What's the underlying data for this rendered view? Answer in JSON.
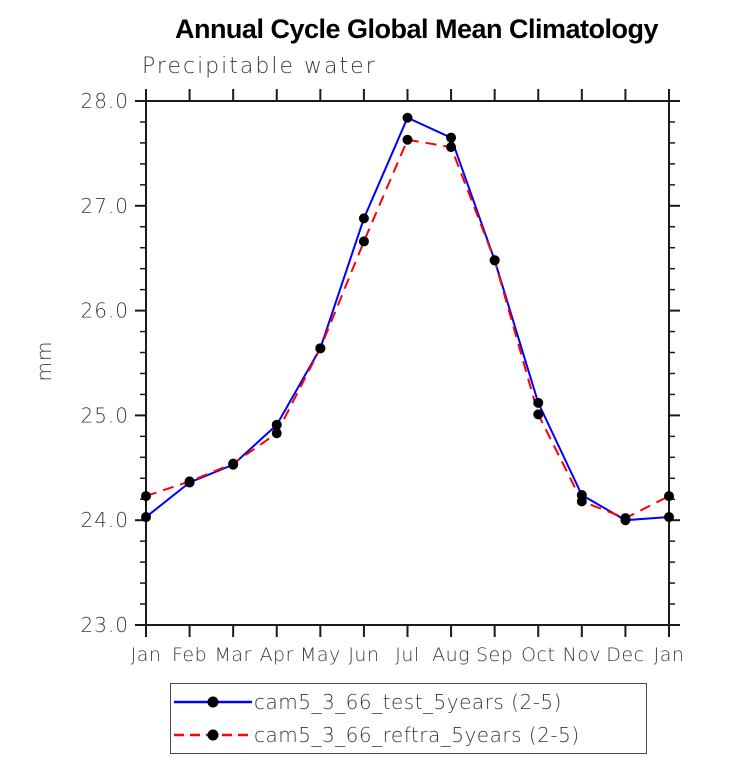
{
  "colors": {
    "background": "#ffffff",
    "axis": "#1a1a1a",
    "tick_label": "#3a3a3a",
    "marker": "#000000",
    "series_test": "#0000ff",
    "series_reftra": "#ff0000"
  },
  "chart_data": {
    "type": "line",
    "title": "Annual Cycle Global Mean Climatology",
    "subtitle": "Precipitable water",
    "ylabel": "mm",
    "categories": [
      "Jan",
      "Feb",
      "Mar",
      "Apr",
      "May",
      "Jun",
      "Jul",
      "Aug",
      "Sep",
      "Oct",
      "Nov",
      "Dec",
      "Jan"
    ],
    "y_axis": {
      "min": 23.0,
      "max": 28.0,
      "major_step": 1.0,
      "minor_step": 0.2,
      "tick_labels": [
        "23.0",
        "24.0",
        "25.0",
        "26.0",
        "27.0",
        "28.0"
      ]
    },
    "grid": "off",
    "legend_position": "bottom-boxed",
    "series": [
      {
        "name": "cam5_3_66_test_5years (2-5)",
        "color": "#0000ff",
        "style": "solid",
        "marker": "filled-circle",
        "values": [
          24.03,
          24.36,
          24.53,
          24.91,
          25.64,
          26.88,
          27.84,
          27.65,
          26.48,
          25.12,
          24.24,
          24.0,
          24.03
        ]
      },
      {
        "name": "cam5_3_66_reftra_5years (2-5)",
        "color": "#ff0000",
        "style": "dashed",
        "marker": "filled-circle",
        "values": [
          24.23,
          24.37,
          24.54,
          24.83,
          25.64,
          26.66,
          27.63,
          27.56,
          26.48,
          25.01,
          24.18,
          24.02,
          24.23
        ]
      }
    ]
  }
}
